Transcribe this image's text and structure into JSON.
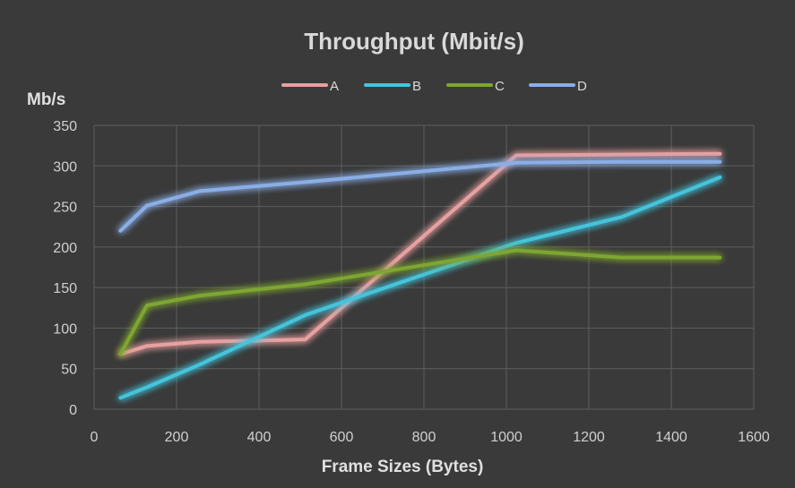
{
  "chart_data": {
    "type": "line",
    "title": "Throughput (Mbit/s)",
    "xlabel": "Frame Sizes (Bytes)",
    "ylabel": "Mb/s",
    "xlim": [
      0,
      1600
    ],
    "ylim": [
      0,
      350
    ],
    "xticks": [
      "0",
      "200",
      "400",
      "600",
      "800",
      "1000",
      "1200",
      "1400",
      "1600"
    ],
    "yticks": [
      "0",
      "50",
      "100",
      "150",
      "200",
      "250",
      "300",
      "350"
    ],
    "grid": true,
    "legend_position": "top",
    "series": [
      {
        "name": "A",
        "color": "#e8a0a0",
        "points": [
          [
            64,
            68
          ],
          [
            128,
            78
          ],
          [
            256,
            83
          ],
          [
            512,
            86
          ],
          [
            1024,
            313
          ],
          [
            1280,
            314
          ],
          [
            1518,
            315
          ]
        ]
      },
      {
        "name": "B",
        "color": "#45c4dc",
        "points": [
          [
            64,
            14
          ],
          [
            128,
            27
          ],
          [
            256,
            55
          ],
          [
            512,
            116
          ],
          [
            1024,
            205
          ],
          [
            1280,
            237
          ],
          [
            1518,
            286
          ]
        ]
      },
      {
        "name": "C",
        "color": "#7ea632",
        "points": [
          [
            64,
            68
          ],
          [
            128,
            128
          ],
          [
            256,
            140
          ],
          [
            512,
            154
          ],
          [
            1024,
            196
          ],
          [
            1280,
            187
          ],
          [
            1518,
            187
          ]
        ]
      },
      {
        "name": "D",
        "color": "#8aaee6",
        "points": [
          [
            64,
            220
          ],
          [
            128,
            251
          ],
          [
            256,
            269
          ],
          [
            512,
            280
          ],
          [
            1024,
            304
          ],
          [
            1280,
            305
          ],
          [
            1518,
            305
          ]
        ]
      }
    ]
  }
}
